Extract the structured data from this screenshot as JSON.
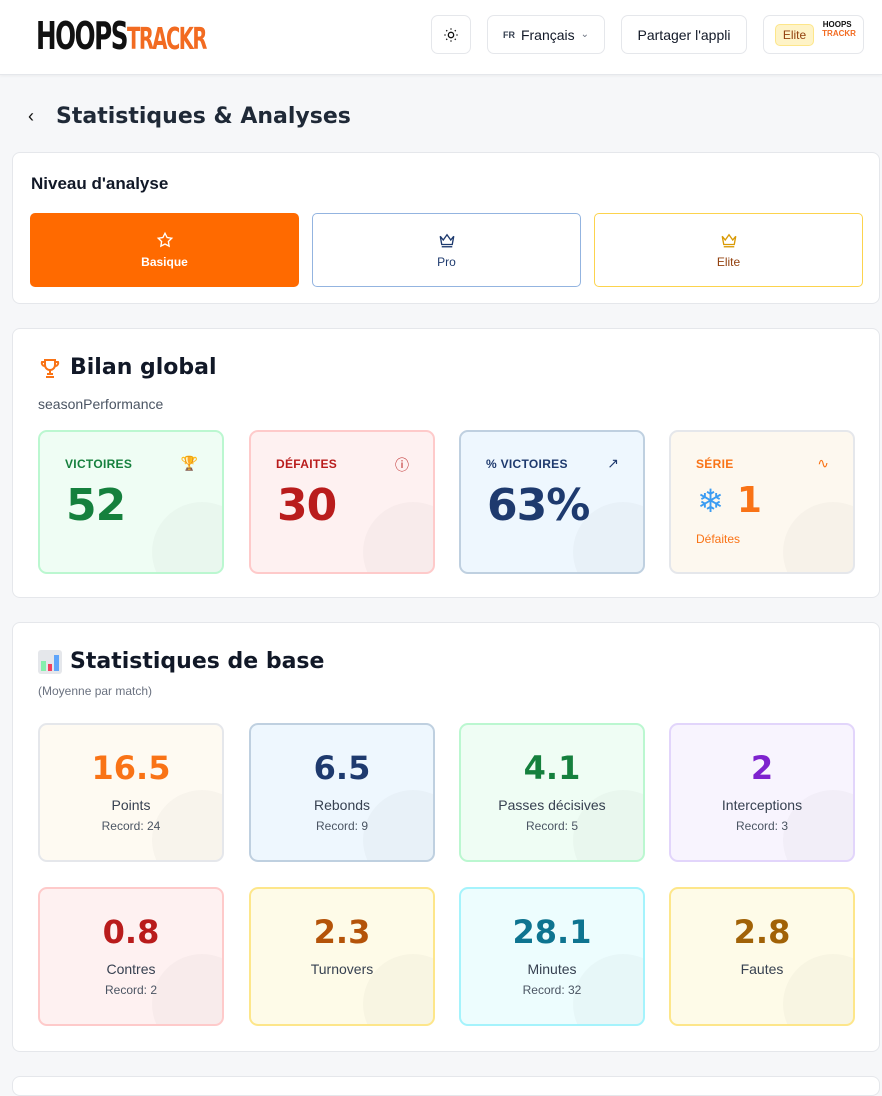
{
  "header": {
    "logo_a": "HOOPS",
    "logo_b": "TRACKR",
    "theme_icon": "sun-icon",
    "lang_code": "FR",
    "lang_label": "Français",
    "share_label": "Partager l'appli",
    "plan_badge": "Elite",
    "avatar_a": "HOOPS",
    "avatar_b": "TRACKR"
  },
  "page": {
    "title": "Statistiques & Analyses"
  },
  "levels": {
    "title": "Niveau d'analyse",
    "items": [
      {
        "label": "Basique",
        "icon": "star-icon",
        "active": true
      },
      {
        "label": "Pro",
        "icon": "crown-icon"
      },
      {
        "label": "Elite",
        "icon": "crown-icon"
      }
    ]
  },
  "overview": {
    "title": "Bilan global",
    "subtitle": "seasonPerformance",
    "cards": [
      {
        "label": "VICTOIRES",
        "value": "52",
        "icon": "trophy-icon",
        "color": "#15803d",
        "bg": "#effdf4",
        "border": "#bbf7d0"
      },
      {
        "label": "DÉFAITES",
        "value": "30",
        "icon": "alert-circle-icon",
        "color": "#b91c1c",
        "bg": "#fef1f1",
        "border": "#fecaca"
      },
      {
        "label": "% VICTOIRES",
        "value": "63%",
        "icon": "trending-up-icon",
        "color": "#1e3a6e",
        "bg": "#eef7fe",
        "border": "#bfd0e0"
      },
      {
        "label": "SÉRIE",
        "value": "1",
        "streak_type": "Défaites",
        "icon": "activity-icon",
        "streak_icon": "snowflake-icon",
        "color": "#f97316",
        "bg": "#fdf8ef",
        "border": "#e5e7eb"
      }
    ]
  },
  "base": {
    "title": "Statistiques de base",
    "subtitle": "(Moyenne par match)",
    "stats": [
      {
        "value": "16.5",
        "name": "Points",
        "record": "Record: 24",
        "color": "#f97316",
        "bg": "#fefaf2",
        "border": "#e5e7eb"
      },
      {
        "value": "6.5",
        "name": "Rebonds",
        "record": "Record: 9",
        "color": "#1e3a6e",
        "bg": "#eef7fe",
        "border": "#bfd0e0"
      },
      {
        "value": "4.1",
        "name": "Passes décisives",
        "record": "Record: 5",
        "color": "#15803d",
        "bg": "#effdf4",
        "border": "#bbf7d0"
      },
      {
        "value": "2",
        "name": "Interceptions",
        "record": "Record: 3",
        "color": "#7e22ce",
        "bg": "#f8f4fe",
        "border": "#e2d5fb"
      },
      {
        "value": "0.8",
        "name": "Contres",
        "record": "Record: 2",
        "color": "#b91c1c",
        "bg": "#fef1f1",
        "border": "#fecaca"
      },
      {
        "value": "2.3",
        "name": "Turnovers",
        "record": "",
        "color": "#b45309",
        "bg": "#fefbe8",
        "border": "#fde68a"
      },
      {
        "value": "28.1",
        "name": "Minutes",
        "record": "Record: 32",
        "color": "#0e7490",
        "bg": "#edfdfe",
        "border": "#a5f3fc"
      },
      {
        "value": "2.8",
        "name": "Fautes",
        "record": "",
        "color": "#a16207",
        "bg": "#fefbe8",
        "border": "#fde68a"
      }
    ]
  }
}
